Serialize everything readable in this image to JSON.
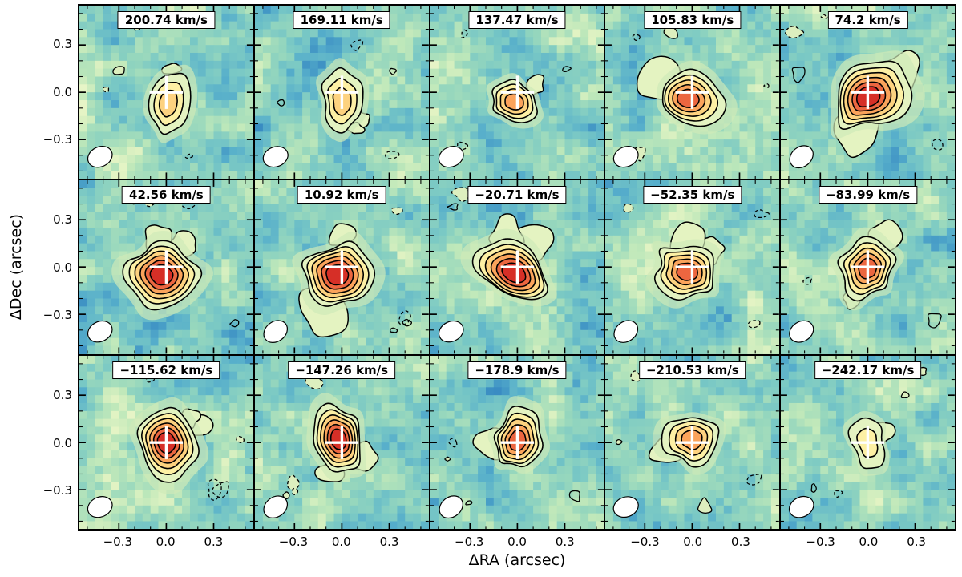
{
  "figure": {
    "xlabel": "ΔRA (arcsec)",
    "ylabel": "ΔDec (arcsec)",
    "x_ticks": [
      "−0.3",
      "0.0",
      "0.3"
    ],
    "y_ticks": [
      "0.3",
      "0.0",
      "−0.3"
    ]
  },
  "colors": {
    "background_ramp": [
      "#2e7ebf",
      "#56aecb",
      "#79c8c5",
      "#97d7bd",
      "#bfe8ba",
      "#e2f3c3",
      "#f3f9cf"
    ],
    "contour_fills": [
      "#e4f3c1",
      "#fdf0a4",
      "#fdd27f",
      "#fba35b",
      "#ec6640",
      "#d62f27"
    ],
    "contour_line": "#000000",
    "cross": "#ffffff",
    "beam_fill": "#ffffff"
  },
  "chart_data": {
    "type": "heatmap",
    "subtype": "velocity-channel-maps-with-contours",
    "title": "",
    "grid_rows": 3,
    "grid_cols": 5,
    "xlabel": "ΔRA (arcsec)",
    "ylabel": "ΔDec (arcsec)",
    "x_range_arcsec": [
      -0.55,
      0.55
    ],
    "y_range_arcsec": [
      -0.55,
      0.55
    ],
    "tick_values_arcsec": [
      -0.3,
      0.0,
      0.3
    ],
    "markers": {
      "cross": "white cross at (0,0) in every panel",
      "beam": "white beam ellipse at bottom-left of every panel"
    },
    "panels": [
      {
        "velocity_label": "200.74 km/s",
        "velocity_kms": 200.74,
        "contour_levels": 3,
        "peak_offset_ra": 0.01,
        "peak_offset_dec": -0.07,
        "extent_ra": 0.12,
        "extent_dec": 0.19
      },
      {
        "velocity_label": "169.11 km/s",
        "velocity_kms": 169.11,
        "contour_levels": 3,
        "peak_offset_ra": 0.0,
        "peak_offset_dec": -0.06,
        "extent_ra": 0.13,
        "extent_dec": 0.19
      },
      {
        "velocity_label": "137.47 km/s",
        "velocity_kms": 137.47,
        "contour_levels": 4,
        "peak_offset_ra": -0.02,
        "peak_offset_dec": -0.06,
        "extent_ra": 0.17,
        "extent_dec": 0.14
      },
      {
        "velocity_label": "105.83 km/s",
        "velocity_kms": 105.83,
        "contour_levels": 5,
        "peak_offset_ra": -0.03,
        "peak_offset_dec": -0.04,
        "extent_ra": 0.21,
        "extent_dec": 0.17
      },
      {
        "velocity_label": "74.2 km/s",
        "velocity_kms": 74.2,
        "contour_levels": 6,
        "peak_offset_ra": 0.0,
        "peak_offset_dec": -0.03,
        "extent_ra": 0.25,
        "extent_dec": 0.2
      },
      {
        "velocity_label": "42.56 km/s",
        "velocity_kms": 42.56,
        "contour_levels": 6,
        "peak_offset_ra": -0.03,
        "peak_offset_dec": -0.05,
        "extent_ra": 0.23,
        "extent_dec": 0.2
      },
      {
        "velocity_label": "10.92 km/s",
        "velocity_kms": 10.92,
        "contour_levels": 6,
        "peak_offset_ra": -0.03,
        "peak_offset_dec": -0.05,
        "extent_ra": 0.23,
        "extent_dec": 0.21
      },
      {
        "velocity_label": "−20.71 km/s",
        "velocity_kms": -20.71,
        "contour_levels": 6,
        "peak_offset_ra": -0.02,
        "peak_offset_dec": -0.04,
        "extent_ra": 0.26,
        "extent_dec": 0.19
      },
      {
        "velocity_label": "−52.35 km/s",
        "velocity_kms": -52.35,
        "contour_levels": 5,
        "peak_offset_ra": -0.03,
        "peak_offset_dec": -0.03,
        "extent_ra": 0.21,
        "extent_dec": 0.16
      },
      {
        "velocity_label": "−83.99 km/s",
        "velocity_kms": -83.99,
        "contour_levels": 5,
        "peak_offset_ra": 0.0,
        "peak_offset_dec": -0.01,
        "extent_ra": 0.17,
        "extent_dec": 0.19
      },
      {
        "velocity_label": "−115.62 km/s",
        "velocity_kms": -115.62,
        "contour_levels": 6,
        "peak_offset_ra": 0.0,
        "peak_offset_dec": 0.0,
        "extent_ra": 0.18,
        "extent_dec": 0.21
      },
      {
        "velocity_label": "−147.26 km/s",
        "velocity_kms": -147.26,
        "contour_levels": 6,
        "peak_offset_ra": -0.02,
        "peak_offset_dec": 0.02,
        "extent_ra": 0.16,
        "extent_dec": 0.21
      },
      {
        "velocity_label": "−178.9 km/s",
        "velocity_kms": -178.9,
        "contour_levels": 5,
        "peak_offset_ra": 0.0,
        "peak_offset_dec": 0.01,
        "extent_ra": 0.16,
        "extent_dec": 0.2
      },
      {
        "velocity_label": "−210.53 km/s",
        "velocity_kms": -210.53,
        "contour_levels": 4,
        "peak_offset_ra": 0.0,
        "peak_offset_dec": 0.02,
        "extent_ra": 0.17,
        "extent_dec": 0.17
      },
      {
        "velocity_label": "−242.17 km/s",
        "velocity_kms": -242.17,
        "contour_levels": 2,
        "peak_offset_ra": 0.0,
        "peak_offset_dec": 0.0,
        "extent_ra": 0.11,
        "extent_dec": 0.15
      }
    ]
  }
}
